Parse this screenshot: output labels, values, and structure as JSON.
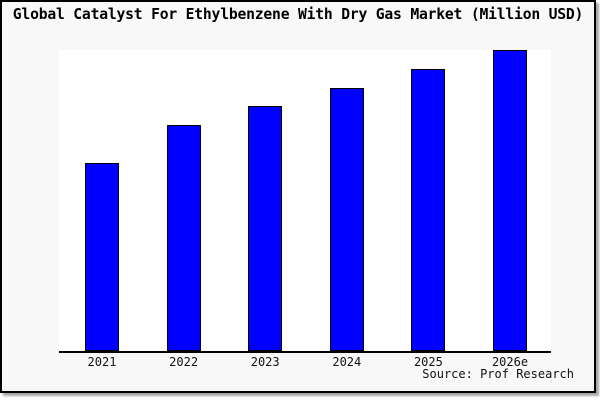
{
  "window": {
    "background_color": "#f8f8f8",
    "plot_background_color": "#ffffff",
    "border_color": "#000000"
  },
  "header": {
    "title": "Global Catalyst For Ethylbenzene With Dry Gas Market (Million USD)"
  },
  "footer": {
    "source_label": "Source: Prof Research"
  },
  "chart_data": {
    "type": "bar",
    "title": "Global Catalyst For Ethylbenzene With Dry Gas Market (Million USD)",
    "categories": [
      "2021",
      "2022",
      "2023",
      "2024",
      "2025",
      "2026e"
    ],
    "values": [
      100,
      120,
      130,
      140,
      150,
      160
    ],
    "values_note": "y-axis has no scale or tick labels; values are relative estimates read from bar heights",
    "xlabel": "",
    "ylabel": "",
    "ylim": [
      0,
      160
    ],
    "grid": false,
    "legend": null,
    "bar_color": "#0000ff",
    "bar_border_color": "#000000"
  }
}
